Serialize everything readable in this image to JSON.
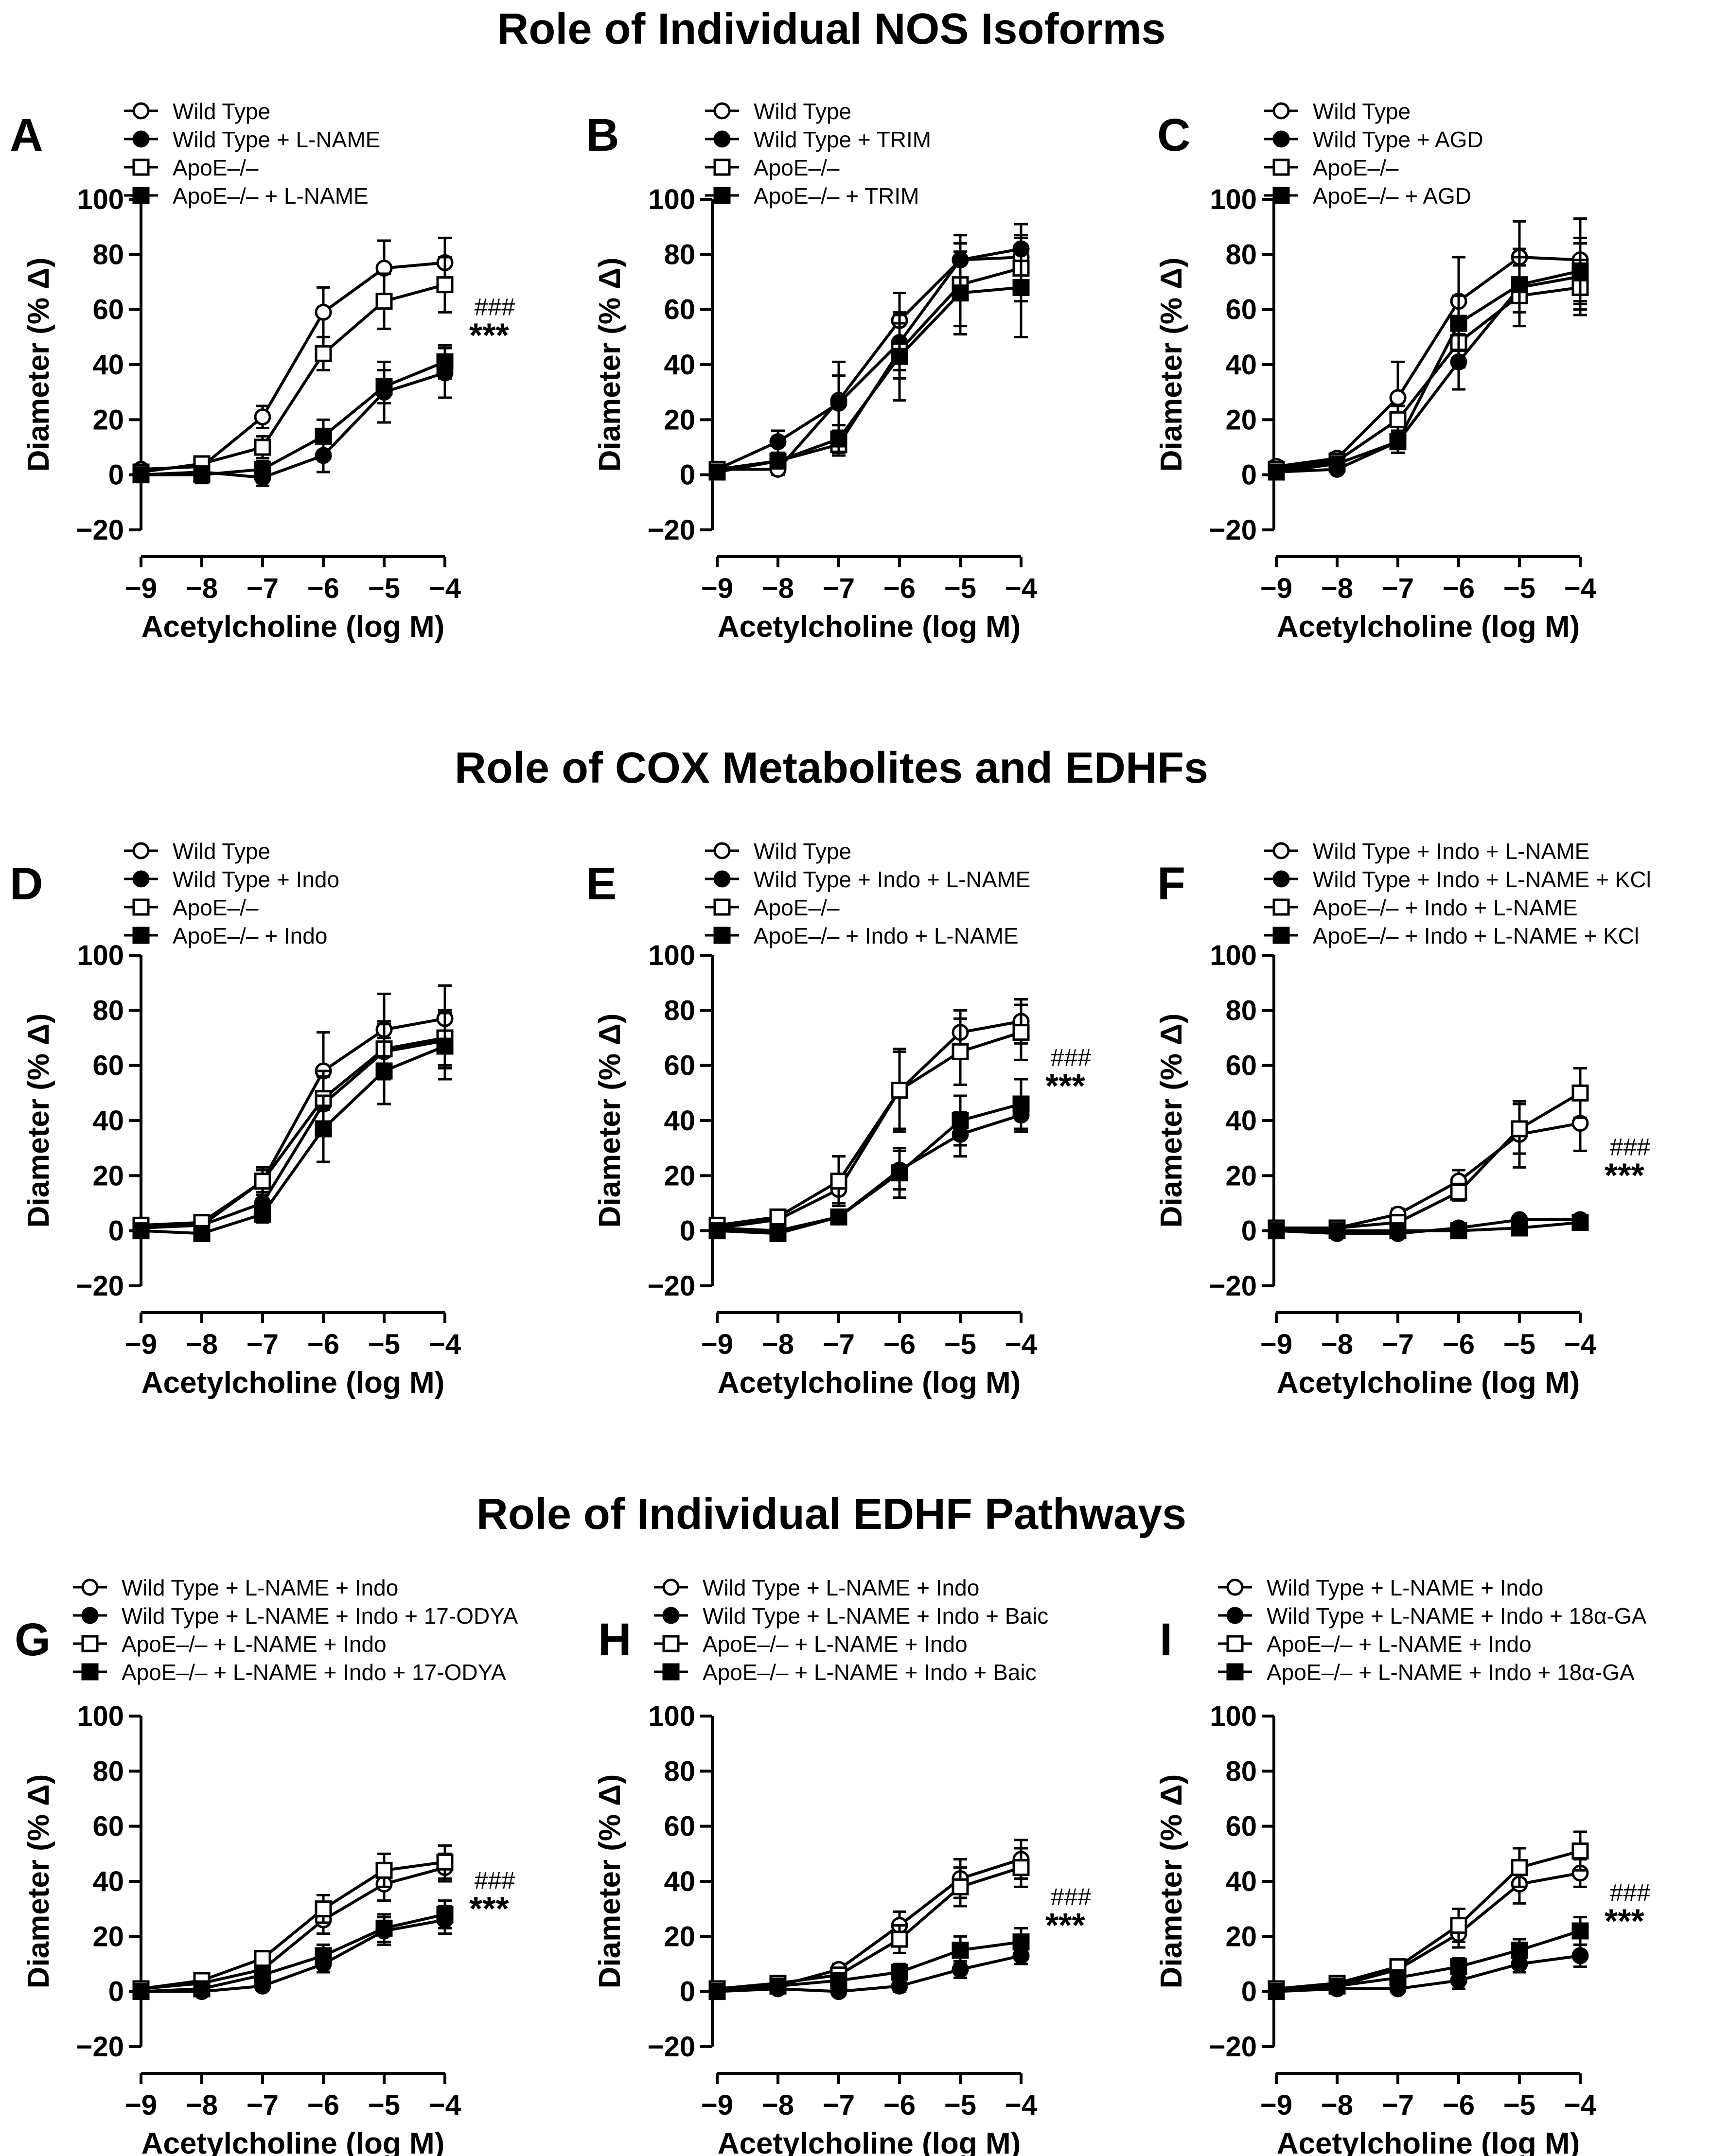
{
  "section_titles": [
    "Role of Individual NOS Isoforms",
    "Role of COX Metabolites and EDHFs",
    "Role of Individual EDHF Pathways"
  ],
  "colors": {
    "ink": "#000000",
    "open_fill": "#ffffff",
    "background": "#ffffff"
  },
  "chart_data": [
    {
      "panel": "A",
      "type": "line",
      "xlabel": "Acetylcholine (log M)",
      "ylabel": "Diameter (% Δ)",
      "ylim": [
        -20,
        100
      ],
      "yticks": [
        -20,
        0,
        20,
        40,
        60,
        80,
        100
      ],
      "x": [
        -9,
        -8,
        -7,
        -6,
        -5,
        -4
      ],
      "xticklabels": [
        "−9",
        "−8",
        "−7",
        "−6",
        "−5",
        "−4"
      ],
      "annotations": [
        "###",
        "***"
      ],
      "legend": "top-left",
      "series": [
        {
          "name": "Wild Type",
          "marker": "open-circle",
          "values": [
            2,
            3,
            21,
            59,
            75,
            77
          ],
          "errors": [
            1,
            2,
            4,
            9,
            10,
            9
          ]
        },
        {
          "name": "Wild Type + L-NAME",
          "marker": "filled-circle",
          "values": [
            0,
            1,
            -1,
            7,
            30,
            37
          ],
          "errors": [
            1,
            1,
            3,
            6,
            11,
            9
          ]
        },
        {
          "name": "ApoE–/–",
          "marker": "open-square",
          "values": [
            1,
            4,
            10,
            44,
            63,
            69
          ],
          "errors": [
            1,
            2,
            4,
            6,
            10,
            10
          ]
        },
        {
          "name": "ApoE–/– + L-NAME",
          "marker": "filled-square",
          "values": [
            0,
            0,
            2,
            14,
            32,
            41
          ],
          "errors": [
            1,
            3,
            3,
            6,
            6,
            6
          ]
        }
      ]
    },
    {
      "panel": "B",
      "type": "line",
      "xlabel": "Acetylcholine (log M)",
      "ylabel": "Diameter (% Δ)",
      "ylim": [
        -20,
        100
      ],
      "yticks": [
        -20,
        0,
        20,
        40,
        60,
        80,
        100
      ],
      "x": [
        -9,
        -8,
        -7,
        -6,
        -5,
        -4
      ],
      "xticklabels": [
        "−9",
        "−8",
        "−7",
        "−6",
        "−5",
        "−4"
      ],
      "annotations": [],
      "legend": "top-left",
      "series": [
        {
          "name": "Wild Type",
          "marker": "open-circle",
          "values": [
            2,
            2,
            27,
            56,
            78,
            79
          ],
          "errors": [
            2,
            2,
            14,
            10,
            9,
            12
          ]
        },
        {
          "name": "Wild Type + TRIM",
          "marker": "filled-circle",
          "values": [
            2,
            12,
            26,
            48,
            78,
            82
          ],
          "errors": [
            1,
            4,
            10,
            10,
            9,
            9
          ]
        },
        {
          "name": "ApoE–/–",
          "marker": "open-square",
          "values": [
            2,
            5,
            11,
            45,
            69,
            75
          ],
          "errors": [
            1,
            2,
            4,
            10,
            15,
            12
          ]
        },
        {
          "name": "ApoE–/– + TRIM",
          "marker": "filled-square",
          "values": [
            1,
            5,
            13,
            43,
            66,
            68
          ],
          "errors": [
            1,
            2,
            5,
            16,
            15,
            18
          ]
        }
      ]
    },
    {
      "panel": "C",
      "type": "line",
      "xlabel": "Acetylcholine (log M)",
      "ylabel": "Diameter (% Δ)",
      "ylim": [
        -20,
        100
      ],
      "yticks": [
        -20,
        0,
        20,
        40,
        60,
        80,
        100
      ],
      "x": [
        -9,
        -8,
        -7,
        -6,
        -5,
        -4
      ],
      "xticklabels": [
        "−9",
        "−8",
        "−7",
        "−6",
        "−5",
        "−4"
      ],
      "annotations": [],
      "legend": "top-left",
      "series": [
        {
          "name": "Wild Type",
          "marker": "open-circle",
          "values": [
            3,
            6,
            28,
            63,
            79,
            78
          ],
          "errors": [
            2,
            2,
            13,
            16,
            13,
            15
          ]
        },
        {
          "name": "Wild Type + AGD",
          "marker": "filled-circle",
          "values": [
            1,
            2,
            12,
            41,
            68,
            72
          ],
          "errors": [
            1,
            1,
            4,
            10,
            14,
            12
          ]
        },
        {
          "name": "ApoE–/–",
          "marker": "open-square",
          "values": [
            2,
            5,
            20,
            48,
            65,
            68
          ],
          "errors": [
            1,
            2,
            5,
            9,
            11,
            10
          ]
        },
        {
          "name": "ApoE–/– + AGD",
          "marker": "filled-square",
          "values": [
            1,
            4,
            12,
            55,
            69,
            74
          ],
          "errors": [
            1,
            2,
            4,
            10,
            10,
            12
          ]
        }
      ]
    },
    {
      "panel": "D",
      "type": "line",
      "xlabel": "Acetylcholine (log M)",
      "ylabel": "Diameter (% Δ)",
      "ylim": [
        -20,
        100
      ],
      "yticks": [
        -20,
        0,
        20,
        40,
        60,
        80,
        100
      ],
      "x": [
        -9,
        -8,
        -7,
        -6,
        -5,
        -4
      ],
      "xticklabels": [
        "−9",
        "−8",
        "−7",
        "−6",
        "−5",
        "−4"
      ],
      "annotations": [],
      "legend": "top-left",
      "series": [
        {
          "name": "Wild Type",
          "marker": "open-circle",
          "values": [
            2,
            2,
            18,
            58,
            73,
            77
          ],
          "errors": [
            1,
            1,
            5,
            14,
            13,
            12
          ]
        },
        {
          "name": "Wild Type + Indo",
          "marker": "filled-circle",
          "values": [
            1,
            2,
            10,
            46,
            65,
            69
          ],
          "errors": [
            1,
            1,
            4,
            10,
            10,
            10
          ]
        },
        {
          "name": "ApoE–/–",
          "marker": "open-square",
          "values": [
            2,
            3,
            18,
            48,
            66,
            70
          ],
          "errors": [
            1,
            1,
            4,
            10,
            10,
            10
          ]
        },
        {
          "name": "ApoE–/– + Indo",
          "marker": "filled-square",
          "values": [
            0,
            -1,
            6,
            37,
            58,
            67
          ],
          "errors": [
            1,
            1,
            3,
            12,
            12,
            12
          ]
        }
      ]
    },
    {
      "panel": "E",
      "type": "line",
      "xlabel": "Acetylcholine (log M)",
      "ylabel": "Diameter (% Δ)",
      "ylim": [
        -20,
        100
      ],
      "yticks": [
        -20,
        0,
        20,
        40,
        60,
        80,
        100
      ],
      "x": [
        -9,
        -8,
        -7,
        -6,
        -5,
        -4
      ],
      "xticklabels": [
        "−9",
        "−8",
        "−7",
        "−6",
        "−5",
        "−4"
      ],
      "annotations": [
        "###",
        "***"
      ],
      "legend": "top-left",
      "series": [
        {
          "name": "Wild Type",
          "marker": "open-circle",
          "values": [
            1,
            4,
            15,
            51,
            72,
            76
          ],
          "errors": [
            1,
            3,
            5,
            15,
            8,
            8
          ]
        },
        {
          "name": "Wild Type + Indo + L-NAME",
          "marker": "filled-circle",
          "values": [
            1,
            0,
            5,
            22,
            35,
            42
          ],
          "errors": [
            1,
            1,
            2,
            7,
            8,
            6
          ]
        },
        {
          "name": "ApoE–/–",
          "marker": "open-square",
          "values": [
            2,
            5,
            18,
            51,
            65,
            72
          ],
          "errors": [
            1,
            2,
            9,
            14,
            12,
            10
          ]
        },
        {
          "name": "ApoE–/– + Indo + L-NAME",
          "marker": "filled-square",
          "values": [
            0,
            -1,
            5,
            21,
            40,
            46
          ],
          "errors": [
            1,
            1,
            2,
            9,
            9,
            9
          ]
        }
      ]
    },
    {
      "panel": "F",
      "type": "line",
      "xlabel": "Acetylcholine (log M)",
      "ylabel": "Diameter (% Δ)",
      "ylim": [
        -20,
        100
      ],
      "yticks": [
        -20,
        0,
        20,
        40,
        60,
        80,
        100
      ],
      "x": [
        -9,
        -8,
        -7,
        -6,
        -5,
        -4
      ],
      "xticklabels": [
        "−9",
        "−8",
        "−7",
        "−6",
        "−5",
        "−4"
      ],
      "annotations": [
        "###",
        "***"
      ],
      "legend": "top-left",
      "series": [
        {
          "name": "Wild Type + Indo + L-NAME",
          "marker": "open-circle",
          "values": [
            0,
            1,
            6,
            18,
            35,
            39
          ],
          "errors": [
            1,
            1,
            2,
            4,
            12,
            10
          ]
        },
        {
          "name": "Wild Type + Indo + L-NAME + KCl",
          "marker": "filled-circle",
          "values": [
            0,
            -1,
            -1,
            1,
            4,
            4
          ],
          "errors": [
            1,
            1,
            1,
            1,
            1,
            1
          ]
        },
        {
          "name": "ApoE–/– + Indo + L-NAME",
          "marker": "open-square",
          "values": [
            1,
            1,
            3,
            14,
            37,
            50
          ],
          "errors": [
            1,
            1,
            1,
            3,
            9,
            9
          ]
        },
        {
          "name": "ApoE–/– + Indo + L-NAME + KCl",
          "marker": "filled-square",
          "values": [
            0,
            0,
            0,
            0,
            1,
            3
          ],
          "errors": [
            1,
            1,
            1,
            1,
            1,
            1
          ]
        }
      ]
    },
    {
      "panel": "G",
      "type": "line",
      "xlabel": "Acetylcholine (log M)",
      "ylabel": "Diameter (% Δ)",
      "ylim": [
        -20,
        100
      ],
      "yticks": [
        -20,
        0,
        20,
        40,
        60,
        80,
        100
      ],
      "x": [
        -9,
        -8,
        -7,
        -6,
        -5,
        -4
      ],
      "xticklabels": [
        "−9",
        "−8",
        "−7",
        "−6",
        "−5",
        "−4"
      ],
      "annotations": [
        "###",
        "***"
      ],
      "legend": "top-left",
      "series": [
        {
          "name": "Wild Type + L-NAME + Indo",
          "marker": "open-circle",
          "values": [
            1,
            3,
            8,
            26,
            39,
            45
          ],
          "errors": [
            1,
            1,
            3,
            5,
            6,
            5
          ]
        },
        {
          "name": "Wild Type + L-NAME + Indo + 17-ODYA",
          "marker": "filled-circle",
          "values": [
            0,
            0,
            2,
            10,
            22,
            26
          ],
          "errors": [
            1,
            1,
            1,
            3,
            5,
            5
          ]
        },
        {
          "name": "ApoE–/– + L-NAME + Indo",
          "marker": "open-square",
          "values": [
            1,
            4,
            12,
            30,
            44,
            47
          ],
          "errors": [
            1,
            1,
            2,
            5,
            6,
            6
          ]
        },
        {
          "name": "ApoE–/– + L-NAME + Indo + 17-ODYA",
          "marker": "filled-square",
          "values": [
            0,
            1,
            6,
            13,
            23,
            28
          ],
          "errors": [
            1,
            1,
            2,
            4,
            5,
            5
          ]
        }
      ]
    },
    {
      "panel": "H",
      "type": "line",
      "xlabel": "Acetylcholine (log M)",
      "ylabel": "Diameter (% Δ)",
      "ylim": [
        -20,
        100
      ],
      "yticks": [
        -20,
        0,
        20,
        40,
        60,
        80,
        100
      ],
      "x": [
        -9,
        -8,
        -7,
        -6,
        -5,
        -4
      ],
      "xticklabels": [
        "−9",
        "−8",
        "−7",
        "−6",
        "−5",
        "−4"
      ],
      "annotations": [
        "###",
        "***"
      ],
      "legend": "top-left",
      "series": [
        {
          "name": "Wild Type + L-NAME + Indo",
          "marker": "open-circle",
          "values": [
            0,
            2,
            8,
            24,
            41,
            48
          ],
          "errors": [
            1,
            1,
            2,
            5,
            7,
            7
          ]
        },
        {
          "name": "Wild Type + L-NAME + Indo + Baic",
          "marker": "filled-circle",
          "values": [
            0,
            1,
            0,
            2,
            8,
            13
          ],
          "errors": [
            1,
            1,
            1,
            2,
            3,
            3
          ]
        },
        {
          "name": "ApoE–/– + L-NAME + Indo",
          "marker": "open-square",
          "values": [
            1,
            3,
            6,
            19,
            38,
            45
          ],
          "errors": [
            1,
            1,
            2,
            5,
            7,
            7
          ]
        },
        {
          "name": "ApoE–/– + L-NAME + Indo + Baic",
          "marker": "filled-square",
          "values": [
            0,
            2,
            4,
            7,
            15,
            18
          ],
          "errors": [
            1,
            1,
            2,
            3,
            5,
            5
          ]
        }
      ]
    },
    {
      "panel": "I",
      "type": "line",
      "xlabel": "Acetylcholine (log M)",
      "ylabel": "Diameter (% Δ)",
      "ylim": [
        -20,
        100
      ],
      "yticks": [
        -20,
        0,
        20,
        40,
        60,
        80,
        100
      ],
      "x": [
        -9,
        -8,
        -7,
        -6,
        -5,
        -4
      ],
      "xticklabels": [
        "−9",
        "−8",
        "−7",
        "−6",
        "−5",
        "−4"
      ],
      "annotations": [
        "###",
        "***"
      ],
      "legend": "top-left",
      "series": [
        {
          "name": "Wild Type + L-NAME + Indo",
          "marker": "open-circle",
          "values": [
            0,
            2,
            8,
            21,
            39,
            43
          ],
          "errors": [
            1,
            1,
            2,
            5,
            7,
            5
          ]
        },
        {
          "name": "Wild Type + L-NAME + Indo + 18α-GA",
          "marker": "filled-circle",
          "values": [
            0,
            1,
            1,
            4,
            10,
            13
          ],
          "errors": [
            1,
            1,
            1,
            3,
            3,
            4
          ]
        },
        {
          "name": "ApoE–/– + L-NAME + Indo",
          "marker": "open-square",
          "values": [
            1,
            3,
            9,
            24,
            45,
            51
          ],
          "errors": [
            1,
            1,
            2,
            6,
            7,
            7
          ]
        },
        {
          "name": "ApoE–/– + L-NAME + Indo + 18α-GA",
          "marker": "filled-square",
          "values": [
            0,
            2,
            5,
            9,
            15,
            22
          ],
          "errors": [
            1,
            1,
            2,
            3,
            4,
            5
          ]
        }
      ]
    }
  ]
}
